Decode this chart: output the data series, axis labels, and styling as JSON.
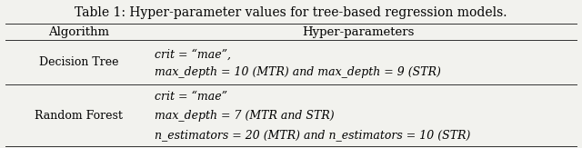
{
  "title": "Table 1: Hyper-parameter values for tree-based regression models.",
  "col1_header": "Algorithm",
  "col2_header": "Hyper-parameters",
  "dt_algorithm": "Decision Tree",
  "dt_params": [
    "crit = “mae”,",
    "max_depth = 10 (MTR) and max_depth = 9 (STR)"
  ],
  "rf_algorithm": "Random Forest",
  "rf_params": [
    "crit = “mae”",
    "max_depth = 7 (MTR and STR)",
    "n_estimators = 20 (MTR) and n_estimators = 10 (STR)"
  ],
  "bg_color": "#f2f2ee",
  "line_color": "#333333",
  "title_fontsize": 10.0,
  "header_fontsize": 9.5,
  "body_fontsize": 9.0
}
